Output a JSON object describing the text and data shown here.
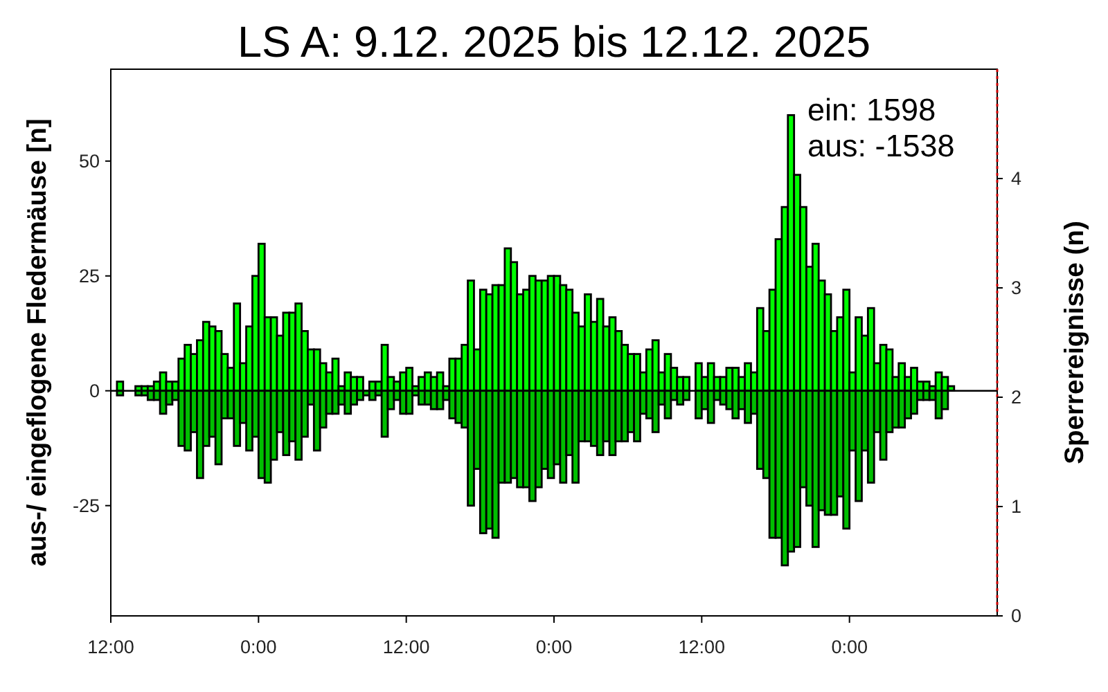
{
  "chart_data": {
    "type": "bar",
    "title": "LS A: 9.12. 2025 bis 12.12. 2025",
    "ylabel": "aus-/ eingeflogene Fledermäuse [n]",
    "y2label": "Sperrereignisse (n)",
    "stacked": true,
    "x": [
      "2025-12-09T12:30",
      "2025-12-09T13:00",
      "2025-12-09T13:30",
      "2025-12-09T14:00",
      "2025-12-09T14:30",
      "2025-12-09T15:00",
      "2025-12-09T15:30",
      "2025-12-09T16:00",
      "2025-12-09T16:30",
      "2025-12-09T17:00",
      "2025-12-09T17:30",
      "2025-12-09T18:00",
      "2025-12-09T18:30",
      "2025-12-09T19:00",
      "2025-12-09T19:30",
      "2025-12-09T20:00",
      "2025-12-09T20:30",
      "2025-12-09T21:00",
      "2025-12-09T21:30",
      "2025-12-09T22:00",
      "2025-12-09T22:30",
      "2025-12-09T23:00",
      "2025-12-09T23:30",
      "2025-12-10T00:00",
      "2025-12-10T00:30",
      "2025-12-10T01:00",
      "2025-12-10T01:30",
      "2025-12-10T02:00",
      "2025-12-10T02:30",
      "2025-12-10T03:00",
      "2025-12-10T03:30",
      "2025-12-10T04:00",
      "2025-12-10T04:30",
      "2025-12-10T05:00",
      "2025-12-10T05:30",
      "2025-12-10T06:00",
      "2025-12-10T06:30",
      "2025-12-10T07:00",
      "2025-12-10T07:30",
      "2025-12-10T08:00",
      "2025-12-10T08:30",
      "2025-12-10T09:00",
      "2025-12-10T09:30",
      "2025-12-10T10:00",
      "2025-12-10T10:30",
      "2025-12-10T11:00",
      "2025-12-10T11:30",
      "2025-12-10T12:00",
      "2025-12-10T12:30",
      "2025-12-10T13:00",
      "2025-12-10T13:30",
      "2025-12-10T14:00",
      "2025-12-10T14:30",
      "2025-12-10T15:00",
      "2025-12-10T15:30",
      "2025-12-10T16:00",
      "2025-12-10T16:30",
      "2025-12-10T17:00",
      "2025-12-10T17:30",
      "2025-12-10T18:00",
      "2025-12-10T18:30",
      "2025-12-10T19:00",
      "2025-12-10T19:30",
      "2025-12-10T20:00",
      "2025-12-10T20:30",
      "2025-12-10T21:00",
      "2025-12-10T21:30",
      "2025-12-10T22:00",
      "2025-12-10T22:30",
      "2025-12-10T23:00",
      "2025-12-10T23:30",
      "2025-12-11T00:00",
      "2025-12-11T00:30",
      "2025-12-11T01:00",
      "2025-12-11T01:30",
      "2025-12-11T02:00",
      "2025-12-11T02:30",
      "2025-12-11T03:00",
      "2025-12-11T03:30",
      "2025-12-11T04:00",
      "2025-12-11T04:30",
      "2025-12-11T05:00",
      "2025-12-11T05:30",
      "2025-12-11T06:00",
      "2025-12-11T06:30",
      "2025-12-11T07:00",
      "2025-12-11T07:30",
      "2025-12-11T08:00",
      "2025-12-11T08:30",
      "2025-12-11T09:00",
      "2025-12-11T09:30",
      "2025-12-11T10:00",
      "2025-12-11T10:30",
      "2025-12-11T11:00",
      "2025-12-11T11:30",
      "2025-12-11T12:00",
      "2025-12-11T12:30",
      "2025-12-11T13:00",
      "2025-12-11T13:30",
      "2025-12-11T14:00",
      "2025-12-11T14:30",
      "2025-12-11T15:00",
      "2025-12-11T15:30",
      "2025-12-11T16:00",
      "2025-12-11T16:30",
      "2025-12-11T17:00",
      "2025-12-11T17:30",
      "2025-12-11T18:00",
      "2025-12-11T18:30",
      "2025-12-11T19:00",
      "2025-12-11T19:30",
      "2025-12-11T20:00",
      "2025-12-11T20:30",
      "2025-12-11T21:00",
      "2025-12-11T21:30",
      "2025-12-11T22:00",
      "2025-12-11T22:30",
      "2025-12-11T23:00",
      "2025-12-11T23:30",
      "2025-12-12T00:00",
      "2025-12-12T00:30",
      "2025-12-12T01:00",
      "2025-12-12T01:30",
      "2025-12-12T02:00",
      "2025-12-12T02:30",
      "2025-12-12T03:00",
      "2025-12-12T03:30",
      "2025-12-12T04:00",
      "2025-12-12T04:30",
      "2025-12-12T05:00",
      "2025-12-12T05:30",
      "2025-12-12T06:00",
      "2025-12-12T06:30",
      "2025-12-12T07:00",
      "2025-12-12T07:30",
      "2025-12-12T08:00"
    ],
    "series": [
      {
        "color": "#00ff00",
        "values": [
          2,
          null,
          null,
          1,
          1,
          1,
          2,
          4,
          2,
          2,
          7,
          10,
          8,
          11,
          15,
          14,
          13,
          8,
          5,
          19,
          6,
          14,
          25,
          32,
          16,
          16,
          12,
          17,
          17,
          19,
          13,
          9,
          9,
          6,
          4,
          7,
          1,
          4,
          3,
          3,
          null,
          2,
          2,
          10,
          3,
          2,
          4,
          5,
          1,
          3,
          4,
          3,
          4,
          1,
          7,
          7,
          10,
          24,
          9,
          22,
          21,
          23,
          23,
          31,
          28,
          21,
          22,
          25,
          24,
          24,
          25,
          25,
          23,
          22,
          17,
          14,
          21,
          15,
          20,
          14,
          16,
          13,
          10,
          8,
          8,
          4,
          9,
          11,
          4,
          8,
          5,
          3,
          3,
          null,
          6,
          3,
          6,
          3,
          3,
          5,
          5,
          3,
          6,
          4,
          18,
          13,
          22,
          33,
          40,
          60,
          47,
          40,
          27,
          32,
          24,
          21,
          13,
          16,
          22,
          4,
          16,
          12,
          18,
          6,
          10,
          9,
          3,
          6,
          3,
          5,
          2,
          2,
          1,
          4,
          3,
          1
        ]
      },
      {
        "color": "#00be00",
        "values": [
          -1,
          null,
          null,
          -1,
          -1,
          -2,
          -2,
          -5,
          -3,
          -2,
          -12,
          -13,
          -9,
          -19,
          -12,
          -10,
          -16,
          -6,
          -6,
          -12,
          -7,
          -13,
          -10,
          -19,
          -20,
          -15,
          -9,
          -14,
          -11,
          -15,
          -10,
          -3,
          -13,
          -8,
          -5,
          -5,
          -3,
          -5,
          -3,
          -2,
          -1,
          -2,
          -1,
          -10,
          -4,
          -2,
          -5,
          -5,
          -1,
          -3,
          -3,
          -4,
          -4,
          -2,
          -6,
          -7,
          -8,
          -25,
          -17,
          -31,
          -30,
          -32,
          -20,
          -20,
          -19,
          -21,
          -21,
          -24,
          -21,
          -17,
          -19,
          -16,
          -20,
          -14,
          -20,
          -11,
          -11,
          -12,
          -14,
          -11,
          -14,
          -11,
          -11,
          -9,
          -11,
          -5,
          -6,
          -9,
          -3,
          -6,
          -2,
          -3,
          -2,
          null,
          -6,
          -4,
          -7,
          -2,
          -3,
          -4,
          -6,
          -4,
          -7,
          -5,
          -17,
          -19,
          -32,
          -32,
          -38,
          -35,
          -34,
          -21,
          -25,
          -34,
          -26,
          -27,
          -27,
          -23,
          -30,
          -13,
          -24,
          -13,
          -20,
          -9,
          -15,
          -9,
          -8,
          -8,
          -6,
          -5,
          -2,
          -2,
          -2,
          -6,
          -4,
          null
        ]
      }
    ],
    "xlim": [
      "2025-12-09T12:00",
      "2025-12-12T12:00"
    ],
    "xticks": [
      {
        "value": "2025-12-09T12:00",
        "label": "12:00"
      },
      {
        "value": "2025-12-10T00:00",
        "label": "0:00"
      },
      {
        "value": "2025-12-10T12:00",
        "label": "12:00"
      },
      {
        "value": "2025-12-11T00:00",
        "label": "0:00"
      },
      {
        "value": "2025-12-11T12:00",
        "label": "12:00"
      },
      {
        "value": "2025-12-12T00:00",
        "label": "0:00"
      }
    ],
    "ylim": [
      -49,
      70
    ],
    "yticks": [
      -25,
      0,
      25,
      50
    ],
    "y2lim": [
      0,
      5
    ],
    "y2ticks": [
      0,
      1,
      2,
      3,
      4
    ],
    "ref_lines": [
      {
        "axis": "x",
        "value": "2025-12-12T12:00",
        "color": "#cc0000",
        "line_style": "dotted"
      }
    ],
    "annotations": [
      "ein: 1598",
      "aus: -1538"
    ]
  }
}
